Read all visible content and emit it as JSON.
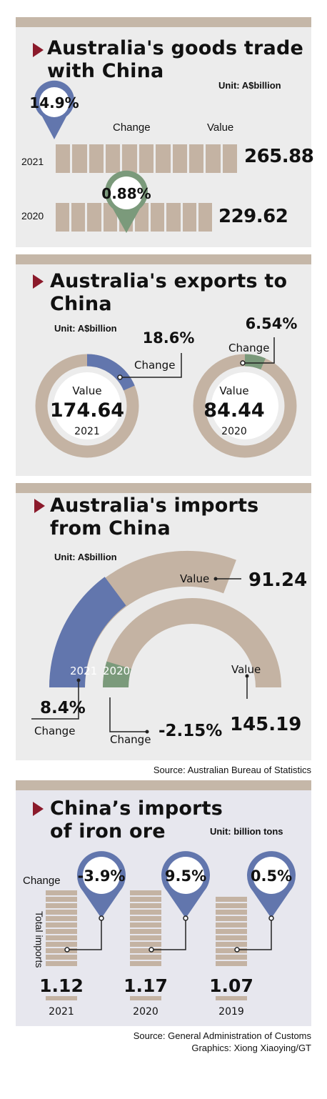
{
  "colors": {
    "panel_bg": "#ececec",
    "panel_bg_blue": "#e7e7ee",
    "bar_top": "#c5b7a8",
    "tan": "#c4b3a3",
    "blue": "#6276ad",
    "green": "#7b9a7b",
    "triangle": "#8b1a2b"
  },
  "panels": {
    "trade": {
      "title_line1": "Australia's goods trade",
      "title_line2": "with China",
      "unit": "Unit: A$billion",
      "change_label": "Change",
      "value_label": "Value"
    },
    "exports": {
      "title_line1": "Australia's exports to",
      "title_line2": "China",
      "unit": "Unit: A$billion",
      "change_label": "Change",
      "value_label": "Value"
    },
    "imports": {
      "title_line1": "Australia's imports",
      "title_line2": "from China",
      "unit": "Unit: A$billion",
      "change_label": "Change",
      "value_label": "Value"
    },
    "iron": {
      "title_line1": "China’s imports",
      "title_line2": "of iron ore",
      "unit": "Unit: billion tons",
      "change_label": "Change",
      "axis_label": "Total imports"
    }
  },
  "sources": {
    "abs": "Source: Australian Bureau of Statistics",
    "customs": "Source: General Administration of Customs",
    "graphics": "Graphics: Xiong Xiaoying/GT"
  },
  "chart_data": [
    {
      "type": "bar",
      "title": "Australia's goods trade with China",
      "unit": "A$billion",
      "categories": [
        "2021",
        "2020"
      ],
      "series": [
        {
          "name": "Value",
          "values": [
            265.88,
            229.62
          ]
        },
        {
          "name": "Change",
          "values": [
            14.9,
            0.88
          ]
        }
      ],
      "labels": {
        "values": [
          "265.88",
          "229.62"
        ],
        "changes": [
          "14.9%",
          "0.88%"
        ]
      }
    },
    {
      "type": "pie",
      "title": "Australia's exports to China",
      "unit": "A$billion",
      "categories": [
        "2021",
        "2020"
      ],
      "series": [
        {
          "name": "Value",
          "values": [
            174.64,
            84.44
          ]
        },
        {
          "name": "Change",
          "values": [
            18.6,
            6.54
          ]
        }
      ],
      "labels": {
        "values": [
          "174.64",
          "84.44"
        ],
        "changes": [
          "18.6%",
          "6.54%"
        ]
      }
    },
    {
      "type": "pie",
      "title": "Australia's imports from China",
      "unit": "A$billion",
      "categories": [
        "2021",
        "2020"
      ],
      "series": [
        {
          "name": "Value",
          "values": [
            91.24,
            145.19
          ]
        },
        {
          "name": "Change",
          "values": [
            8.4,
            -2.15
          ]
        }
      ],
      "labels": {
        "values": [
          "91.24",
          "145.19"
        ],
        "changes": [
          "8.4%",
          "-2.15%"
        ]
      }
    },
    {
      "type": "bar",
      "title": "China’s imports of iron ore",
      "unit": "billion tons",
      "categories": [
        "2021",
        "2020",
        "2019"
      ],
      "series": [
        {
          "name": "Total imports",
          "values": [
            1.12,
            1.17,
            1.07
          ]
        },
        {
          "name": "Change",
          "values": [
            -3.9,
            9.5,
            0.5
          ]
        }
      ],
      "labels": {
        "values": [
          "1.12",
          "1.17",
          "1.07"
        ],
        "changes": [
          "-3.9%",
          "9.5%",
          "0.5%"
        ]
      }
    }
  ]
}
